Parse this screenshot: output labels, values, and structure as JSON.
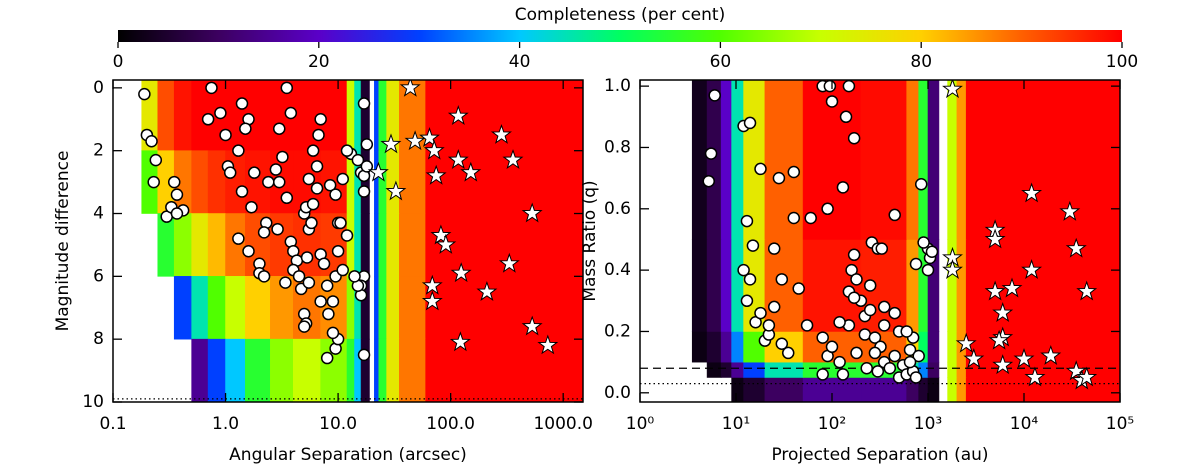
{
  "chart_data": [
    {
      "type": "colorbar",
      "title": "Completeness (per cent)",
      "xlim": [
        0,
        100
      ],
      "xticks": [
        0,
        20,
        40,
        60,
        80,
        100
      ],
      "colormap": [
        "#000000",
        "#3c0060",
        "#5a00c8",
        "#0040ff",
        "#00c8ff",
        "#00ff60",
        "#50ff00",
        "#c8ff00",
        "#ffd000",
        "#ff6000",
        "#ff0000"
      ]
    },
    {
      "type": "scatter",
      "xlabel": "Angular Separation (arcsec)",
      "ylabel": "Magnitude difference",
      "xlog": true,
      "xlim": [
        0.1,
        1500
      ],
      "ylim": [
        10,
        -0.25
      ],
      "xticks": [
        0.1,
        {
          "value": 1,
          "label": "1.0"
        },
        {
          "value": 10,
          "label": "10.0"
        },
        {
          "value": 100,
          "label": "100.0"
        },
        {
          "value": 1000,
          "label": "1000.0"
        }
      ],
      "yticks": [
        0,
        2,
        4,
        6,
        8,
        10
      ],
      "heatmap": {
        "x_edges": [
          0.18,
          0.25,
          0.35,
          0.5,
          0.7,
          1,
          1.5,
          2.5,
          4,
          7,
          12,
          14,
          16,
          19,
          21,
          23,
          27,
          35,
          60,
          1500
        ],
        "y_edges": [
          0,
          2,
          4,
          6,
          8,
          10
        ],
        "values": [
          [
            75,
            92,
            98,
            100,
            100,
            100,
            100,
            100,
            100,
            100,
            70,
            45,
            5,
            null,
            30,
            55,
            75,
            88,
            100
          ],
          [
            60,
            80,
            88,
            92,
            95,
            97,
            98,
            99,
            99,
            98,
            70,
            45,
            5,
            null,
            30,
            55,
            75,
            88,
            100
          ],
          [
            null,
            55,
            65,
            75,
            82,
            88,
            92,
            94,
            95,
            94,
            70,
            45,
            5,
            null,
            30,
            55,
            75,
            88,
            100
          ],
          [
            null,
            null,
            30,
            45,
            60,
            70,
            80,
            85,
            88,
            86,
            65,
            45,
            5,
            null,
            30,
            55,
            75,
            88,
            100
          ],
          [
            null,
            null,
            null,
            15,
            30,
            40,
            55,
            65,
            70,
            65,
            55,
            40,
            5,
            null,
            30,
            55,
            75,
            88,
            100
          ]
        ]
      },
      "hlines": [
        {
          "value": 9.9,
          "style": "dotted"
        }
      ],
      "series": [
        {
          "marker": "circle",
          "color": "#ffffff",
          "x": [
            0.19,
            0.2,
            0.22,
            0.24,
            0.23,
            0.3,
            0.33,
            0.35,
            0.37,
            0.42,
            0.37,
            0.75,
            0.9,
            0.7,
            1.0,
            1.05,
            1.1,
            1.4,
            1.6,
            1.5,
            1.3,
            1.8,
            1.4,
            1.7,
            1.3,
            1.6,
            2.0,
            2.0,
            2.2,
            2.3,
            2.2,
            2.4,
            2.8,
            3.0,
            3.2,
            3.5,
            3.8,
            2.9,
            3.5,
            3.0,
            3.8,
            4.0,
            4.3,
            4.0,
            3.4,
            4.5,
            4.7,
            5.0,
            5.2,
            5.0,
            5.5,
            5.3,
            5.5,
            5.0,
            5.2,
            5.8,
            6.0,
            6.5,
            6.0,
            6.7,
            7.0,
            5.5,
            6.5,
            7.0,
            7.5,
            7.0,
            8.0,
            8.2,
            9.0,
            9.5,
            10,
            8.5,
            9.5,
            10,
            12,
            11,
            13,
            8,
            9.5,
            10,
            15,
            16,
            17,
            18,
            17,
            17,
            16,
            16,
            17,
            18,
            12,
            11,
            9,
            10.5,
            15,
            17,
            14
          ],
          "values": [
            0.2,
            1.5,
            1.7,
            2.3,
            3.0,
            4.1,
            3.8,
            3.0,
            3.4,
            3.9,
            4.0,
            0,
            0.8,
            1.0,
            1.5,
            2.5,
            2.7,
            0.5,
            1.0,
            1.3,
            2.0,
            2.7,
            3.3,
            3.8,
            4.8,
            5.2,
            5.6,
            5.9,
            6.0,
            4.3,
            4.6,
            3.0,
            2.6,
            1.3,
            2.2,
            0,
            0.8,
            4.5,
            3.5,
            3.0,
            4.9,
            5.2,
            5.5,
            5.8,
            6.2,
            6.0,
            6.4,
            7.2,
            7.5,
            7.6,
            6.2,
            5.4,
            4.5,
            4.0,
            3.8,
            4.3,
            3.7,
            2.5,
            2.0,
            1.5,
            1.0,
            2.9,
            3.2,
            5.3,
            5.6,
            6.8,
            6.3,
            7.2,
            6.8,
            6.0,
            5.2,
            3.1,
            3.4,
            4.3,
            4.7,
            2.9,
            2.1,
            8.6,
            8.3,
            8.0,
            2.3,
            2.7,
            2.8,
            2.5,
            3.3,
            6.0,
            6.3,
            6.6,
            0.5,
            1.8,
            2.0,
            5.8,
            7.8,
            4.3,
            6.3,
            8.5,
            6.0
          ]
        },
        {
          "marker": "star",
          "color": "#ffffff",
          "x": [
            43.8,
            29.5,
            48.3,
            64.9,
            71.5,
            22.8,
            32.6,
            74.4,
            117,
            117,
            151,
            283,
            358,
            530,
            82,
            90.6,
            124,
            332,
            68.7,
            68.7,
            210,
            122,
            530,
            730
          ],
          "values": [
            0,
            1.8,
            1.7,
            1.6,
            2.0,
            2.7,
            3.3,
            2.8,
            0.9,
            2.3,
            2.7,
            1.5,
            2.3,
            4.0,
            4.7,
            5.0,
            5.9,
            5.6,
            6.3,
            6.8,
            6.5,
            8.1,
            7.6,
            8.2
          ]
        }
      ]
    },
    {
      "type": "scatter",
      "xlabel": "Projected Separation (au)",
      "ylabel": "Mass Ratio (q)",
      "xlog": true,
      "xlim": [
        1,
        100000
      ],
      "ylim": [
        -0.03,
        1.02
      ],
      "xticks": [
        {
          "value": 1,
          "label": "10⁰"
        },
        {
          "value": 10,
          "label": "10¹"
        },
        {
          "value": 100,
          "label": "10²"
        },
        {
          "value": 1000,
          "label": "10³"
        },
        {
          "value": 10000,
          "label": "10⁴"
        },
        {
          "value": 100000,
          "label": "10⁵"
        }
      ],
      "yticks": [
        {
          "value": 0,
          "label": "0.0"
        },
        0.2,
        0.4,
        0.6,
        0.8,
        {
          "value": 1,
          "label": "1.0"
        }
      ],
      "heatmap": {
        "x_edges": [
          3.5,
          5,
          7,
          9,
          12,
          20,
          50,
          200,
          600,
          800,
          1000,
          1300,
          1600,
          2000,
          2500,
          100000
        ],
        "y_edges": [
          0,
          0.05,
          0.1,
          0.2,
          0.5,
          1
        ],
        "values": [
          [
            null,
            null,
            null,
            2,
            5,
            10,
            15,
            15,
            10,
            5,
            2,
            null,
            70,
            85,
            100
          ],
          [
            null,
            2,
            5,
            15,
            30,
            45,
            55,
            55,
            45,
            35,
            10,
            null,
            70,
            85,
            100
          ],
          [
            2,
            5,
            15,
            35,
            60,
            80,
            90,
            90,
            80,
            50,
            12,
            null,
            70,
            85,
            100
          ],
          [
            3,
            8,
            20,
            45,
            75,
            90,
            98,
            97,
            85,
            55,
            12,
            null,
            70,
            85,
            100
          ],
          [
            3,
            8,
            20,
            45,
            75,
            90,
            100,
            99,
            88,
            55,
            12,
            null,
            70,
            85,
            100
          ]
        ]
      },
      "hlines": [
        {
          "value": 0.08,
          "style": "dashed"
        },
        {
          "value": 0.03,
          "style": "dotted"
        }
      ],
      "series": [
        {
          "marker": "circle",
          "color": "#ffffff",
          "x": [
            6,
            5.5,
            5.2,
            12,
            14,
            13,
            15,
            12,
            13,
            14,
            16,
            18,
            20,
            22,
            25,
            30,
            35,
            18,
            40,
            28,
            25,
            30,
            22,
            45,
            55,
            60,
            40,
            80,
            95,
            150,
            100,
            140,
            170,
            90,
            130,
            80,
            90,
            100,
            120,
            130,
            150,
            160,
            170,
            180,
            200,
            220,
            250,
            260,
            300,
            330,
            220,
            280,
            320,
            350,
            400,
            300,
            230,
            450,
            500,
            550,
            600,
            650,
            700,
            450,
            500,
            350,
            600,
            280,
            180,
            150,
            250,
            120,
            170,
            350,
            700,
            750,
            850,
            1000,
            1050,
            1000,
            900,
            800,
            750,
            1100,
            80,
            650,
            450
          ],
          "values": [
            0.97,
            0.78,
            0.69,
            0.87,
            0.88,
            0.56,
            0.48,
            0.4,
            0.3,
            0.37,
            0.23,
            0.26,
            0.17,
            0.19,
            0.28,
            0.16,
            0.13,
            0.73,
            0.72,
            0.7,
            0.47,
            0.37,
            0.22,
            0.34,
            0.22,
            0.57,
            0.57,
            1.0,
            1.0,
            1.0,
            0.95,
            0.9,
            0.83,
            0.6,
            0.67,
            0.18,
            0.12,
            0.15,
            0.1,
            0.06,
            0.33,
            0.4,
            0.45,
            0.37,
            0.3,
            0.25,
            0.27,
            0.49,
            0.47,
            0.47,
            0.19,
            0.18,
            0.15,
            0.1,
            0.08,
            0.07,
            0.08,
            0.12,
            0.05,
            0.09,
            0.06,
            0.14,
            0.18,
            0.58,
            0.2,
            0.22,
            0.2,
            0.13,
            0.13,
            0.22,
            0.35,
            0.23,
            0.31,
            0.28,
            0.07,
            0.42,
            0.68,
            0.47,
            0.44,
            0.4,
            0.49,
            0.12,
            0.05,
            0.46,
            0.06,
            0.1,
            0.26
          ]
        },
        {
          "marker": "star",
          "color": "#ffffff",
          "x": [
            1800,
            1800,
            1800,
            2500,
            3000,
            5000,
            5000,
            5000,
            6000,
            6000,
            5500,
            6000,
            7500,
            12000,
            12000,
            10000,
            19000,
            13000,
            30000,
            35000,
            45000,
            35000,
            40000,
            45000
          ],
          "values": [
            0.99,
            0.44,
            0.4,
            0.16,
            0.11,
            0.53,
            0.5,
            0.33,
            0.26,
            0.18,
            0.17,
            0.09,
            0.34,
            0.65,
            0.4,
            0.11,
            0.12,
            0.05,
            0.59,
            0.47,
            0.33,
            0.07,
            0.04,
            0.05
          ]
        }
      ]
    }
  ]
}
